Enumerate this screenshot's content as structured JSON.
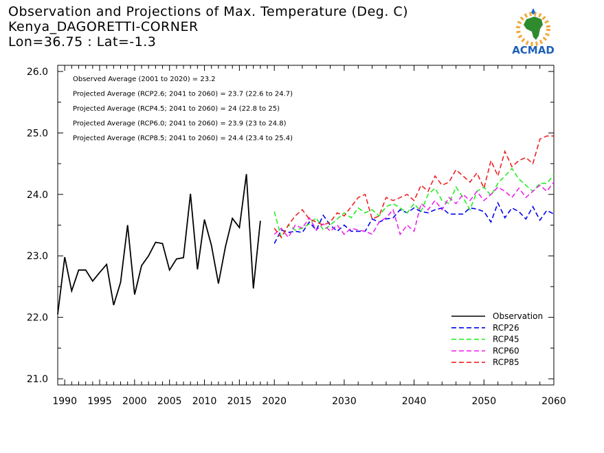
{
  "header": {
    "title": "Observation and Projections of Max. Temperature (Deg. C)",
    "station": "Kenya_DAGORETTI-CORNER",
    "coords": "Lon=36.75 : Lat=-1.3"
  },
  "logo": {
    "text": "ACMAD",
    "icon": "africa-map-logo-icon"
  },
  "annotations": [
    "Observed Average (2001 to 2020) = 23.2",
    "Projected Average (RCP2.6; 2041 to 2060) = 23.7 (22.6 to 24.7)",
    "Projected Average (RCP4.5; 2041 to 2060) = 24 (22.8 to 25)",
    "Projected Average (RCP6.0; 2041 to 2060) = 23.9 (23 to 24.8)",
    "Projected Average (RCP8.5; 2041 to 2060) = 24.4 (23.4 to 25.4)"
  ],
  "chart_data": {
    "type": "line",
    "xlim": [
      1989,
      2060
    ],
    "ylim": [
      20.9,
      26.1
    ],
    "x_ticks_labeled": [
      1990,
      1995,
      2000,
      2005,
      2010,
      2015,
      2020,
      2030,
      2040,
      2050,
      2060
    ],
    "y_ticks": [
      21.0,
      22.0,
      23.0,
      24.0,
      25.0,
      26.0
    ],
    "y_tick_labels": [
      "21.0",
      "22.0",
      "23.0",
      "24.0",
      "25.0",
      "26.0"
    ],
    "legend_position": "bottom-right",
    "series": [
      {
        "name": "Observation",
        "color": "#000000",
        "dashed": false,
        "x": [
          1989,
          1990,
          1991,
          1992,
          1993,
          1994,
          1995,
          1996,
          1997,
          1998,
          1999,
          2000,
          2001,
          2002,
          2003,
          2004,
          2005,
          2006,
          2007,
          2008,
          2009,
          2010,
          2011,
          2012,
          2013,
          2014,
          2015,
          2016,
          2017,
          2018,
          2019
        ],
        "y": [
          22.05,
          22.98,
          22.43,
          22.77,
          22.77,
          22.59,
          22.73,
          22.86,
          22.2,
          22.57,
          23.5,
          22.37,
          22.84,
          23.0,
          23.22,
          23.2,
          22.77,
          22.95,
          22.97,
          24.01,
          22.78,
          23.59,
          23.17,
          22.55,
          23.15,
          23.61,
          23.46,
          24.33,
          22.47,
          23.57,
          null
        ]
      },
      {
        "name": "RCP26",
        "color": "#0000ee",
        "dashed": true,
        "x": [
          2020,
          2021,
          2022,
          2023,
          2024,
          2025,
          2026,
          2027,
          2028,
          2029,
          2030,
          2031,
          2032,
          2033,
          2034,
          2035,
          2036,
          2037,
          2038,
          2039,
          2040,
          2041,
          2042,
          2043,
          2044,
          2045,
          2046,
          2047,
          2048,
          2049,
          2050,
          2051,
          2052,
          2053,
          2054,
          2055,
          2056,
          2057,
          2058,
          2059,
          2060
        ],
        "y": [
          23.2,
          23.42,
          23.38,
          23.4,
          23.38,
          23.55,
          23.42,
          23.66,
          23.5,
          23.4,
          23.5,
          23.4,
          23.4,
          23.4,
          23.6,
          23.55,
          23.6,
          23.62,
          23.75,
          23.7,
          23.78,
          23.72,
          23.7,
          23.75,
          23.78,
          23.68,
          23.68,
          23.68,
          23.78,
          23.76,
          23.72,
          23.55,
          23.86,
          23.62,
          23.78,
          23.72,
          23.6,
          23.8,
          23.58,
          23.74,
          23.68
        ]
      },
      {
        "name": "RCP45",
        "color": "#22ee22",
        "dashed": true,
        "x": [
          2020,
          2021,
          2022,
          2023,
          2024,
          2025,
          2026,
          2027,
          2028,
          2029,
          2030,
          2031,
          2032,
          2033,
          2034,
          2035,
          2036,
          2037,
          2038,
          2039,
          2040,
          2041,
          2042,
          2043,
          2044,
          2045,
          2046,
          2047,
          2048,
          2049,
          2050,
          2051,
          2052,
          2053,
          2054,
          2055,
          2056,
          2057,
          2058,
          2059,
          2060
        ],
        "y": [
          23.72,
          23.3,
          23.5,
          23.42,
          23.45,
          23.52,
          23.62,
          23.42,
          23.5,
          23.6,
          23.7,
          23.62,
          23.78,
          23.7,
          23.75,
          23.65,
          23.8,
          23.85,
          23.78,
          23.7,
          23.85,
          23.72,
          24.0,
          24.1,
          23.9,
          23.85,
          24.12,
          23.95,
          23.75,
          24.05,
          24.12,
          23.98,
          24.18,
          24.3,
          24.42,
          24.25,
          24.15,
          24.05,
          24.18,
          24.18,
          24.32
        ]
      },
      {
        "name": "RCP60",
        "color": "#ee22ee",
        "dashed": true,
        "x": [
          2020,
          2021,
          2022,
          2023,
          2024,
          2025,
          2026,
          2027,
          2028,
          2029,
          2030,
          2031,
          2032,
          2033,
          2034,
          2035,
          2036,
          2037,
          2038,
          2039,
          2040,
          2041,
          2042,
          2043,
          2044,
          2045,
          2046,
          2047,
          2048,
          2049,
          2050,
          2051,
          2052,
          2053,
          2054,
          2055,
          2056,
          2057,
          2058,
          2059,
          2060
        ],
        "y": [
          23.35,
          23.45,
          23.3,
          23.5,
          23.45,
          23.62,
          23.42,
          23.52,
          23.4,
          23.5,
          23.35,
          23.45,
          23.42,
          23.4,
          23.35,
          23.55,
          23.62,
          23.75,
          23.35,
          23.5,
          23.4,
          23.85,
          23.75,
          23.9,
          23.75,
          23.95,
          23.85,
          24.0,
          23.9,
          24.05,
          23.9,
          24.0,
          24.12,
          24.05,
          23.95,
          24.1,
          23.95,
          24.05,
          24.15,
          24.05,
          24.2
        ]
      },
      {
        "name": "RCP85",
        "color": "#ee2020",
        "dashed": true,
        "x": [
          2020,
          2021,
          2022,
          2023,
          2024,
          2025,
          2026,
          2027,
          2028,
          2029,
          2030,
          2031,
          2032,
          2033,
          2034,
          2035,
          2036,
          2037,
          2038,
          2039,
          2040,
          2041,
          2042,
          2043,
          2044,
          2045,
          2046,
          2047,
          2048,
          2049,
          2050,
          2051,
          2052,
          2053,
          2054,
          2055,
          2056,
          2057,
          2058,
          2059,
          2060
        ],
        "y": [
          23.45,
          23.3,
          23.5,
          23.65,
          23.75,
          23.6,
          23.55,
          23.5,
          23.55,
          23.7,
          23.65,
          23.8,
          23.95,
          24.0,
          23.6,
          23.65,
          23.95,
          23.9,
          23.95,
          24.0,
          23.9,
          24.15,
          24.05,
          24.3,
          24.15,
          24.2,
          24.4,
          24.3,
          24.2,
          24.35,
          24.1,
          24.55,
          24.3,
          24.7,
          24.45,
          24.55,
          24.6,
          24.5,
          24.9,
          24.95,
          24.95
        ]
      }
    ]
  }
}
